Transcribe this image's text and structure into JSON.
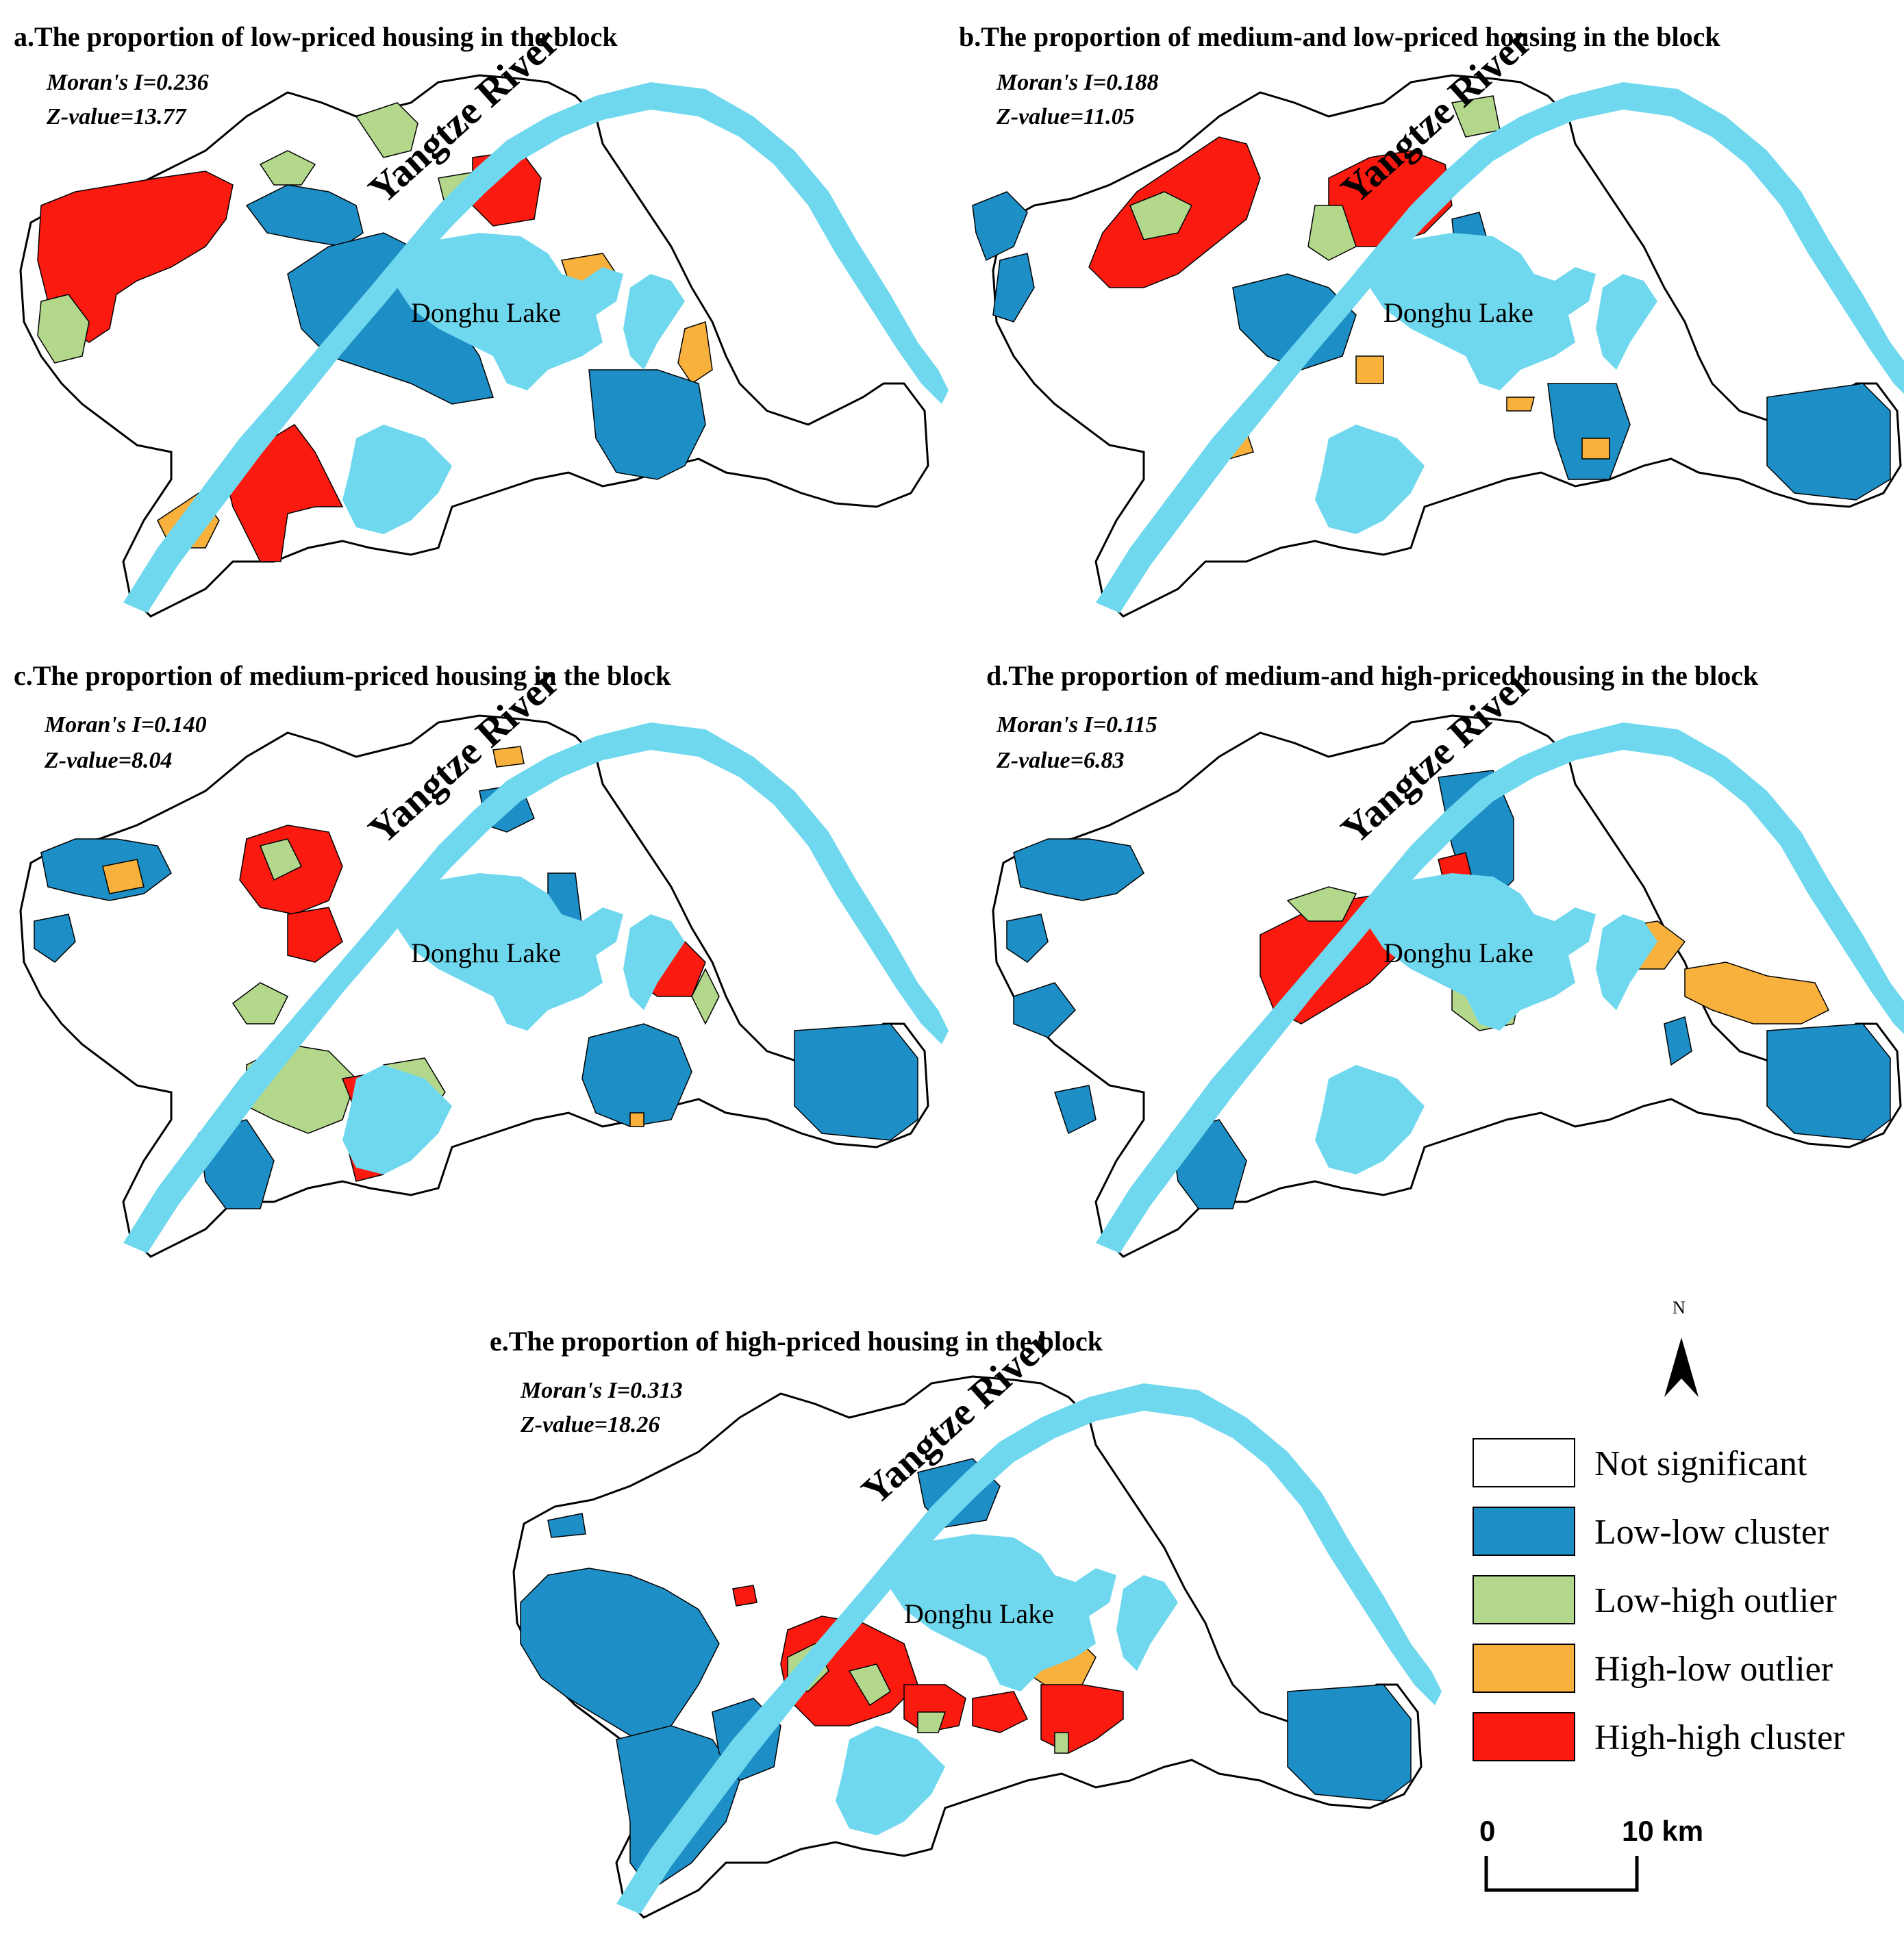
{
  "colors": {
    "not_significant": "#ffffff",
    "low_low": "#1d8ec6",
    "low_high": "#b3d88c",
    "high_low": "#f7b13c",
    "high_high": "#fb1a10",
    "water": "#6fd8ee",
    "boundary": "#000000"
  },
  "map_labels": {
    "river": "Yangtze River",
    "lake": "Donghu  Lake"
  },
  "panels": [
    {
      "id": "a",
      "title": "a.The proportion of low-priced housing in the block",
      "moran": "Moran's I=0.236",
      "z": "Z-value=13.77"
    },
    {
      "id": "b",
      "title": "b.The proportion of medium-and low-priced housing in the block",
      "moran": "Moran's I=0.188",
      "z": "Z-value=11.05"
    },
    {
      "id": "c",
      "title": "c.The proportion of medium-priced housing in the block",
      "moran": "Moran's I=0.140",
      "z": "Z-value=8.04"
    },
    {
      "id": "d",
      "title": "d.The proportion of medium-and high-priced housing in the block",
      "moran": "Moran's I=0.115",
      "z": "Z-value=6.83"
    },
    {
      "id": "e",
      "title": "e.The proportion of high-priced housing in the block",
      "moran": "Moran's I=0.313",
      "z": "Z-value=18.26"
    }
  ],
  "legend": [
    {
      "label": "Not significant",
      "color": "#ffffff"
    },
    {
      "label": "Low-low cluster",
      "color": "#1d8ec6"
    },
    {
      "label": "Low-high outlier",
      "color": "#b3d88c"
    },
    {
      "label": "High-low outlier",
      "color": "#f7b13c"
    },
    {
      "label": "High-high cluster",
      "color": "#fb1a10"
    }
  ],
  "north_arrow": "N",
  "scale_bar": {
    "start": "0",
    "end": "10 km"
  }
}
